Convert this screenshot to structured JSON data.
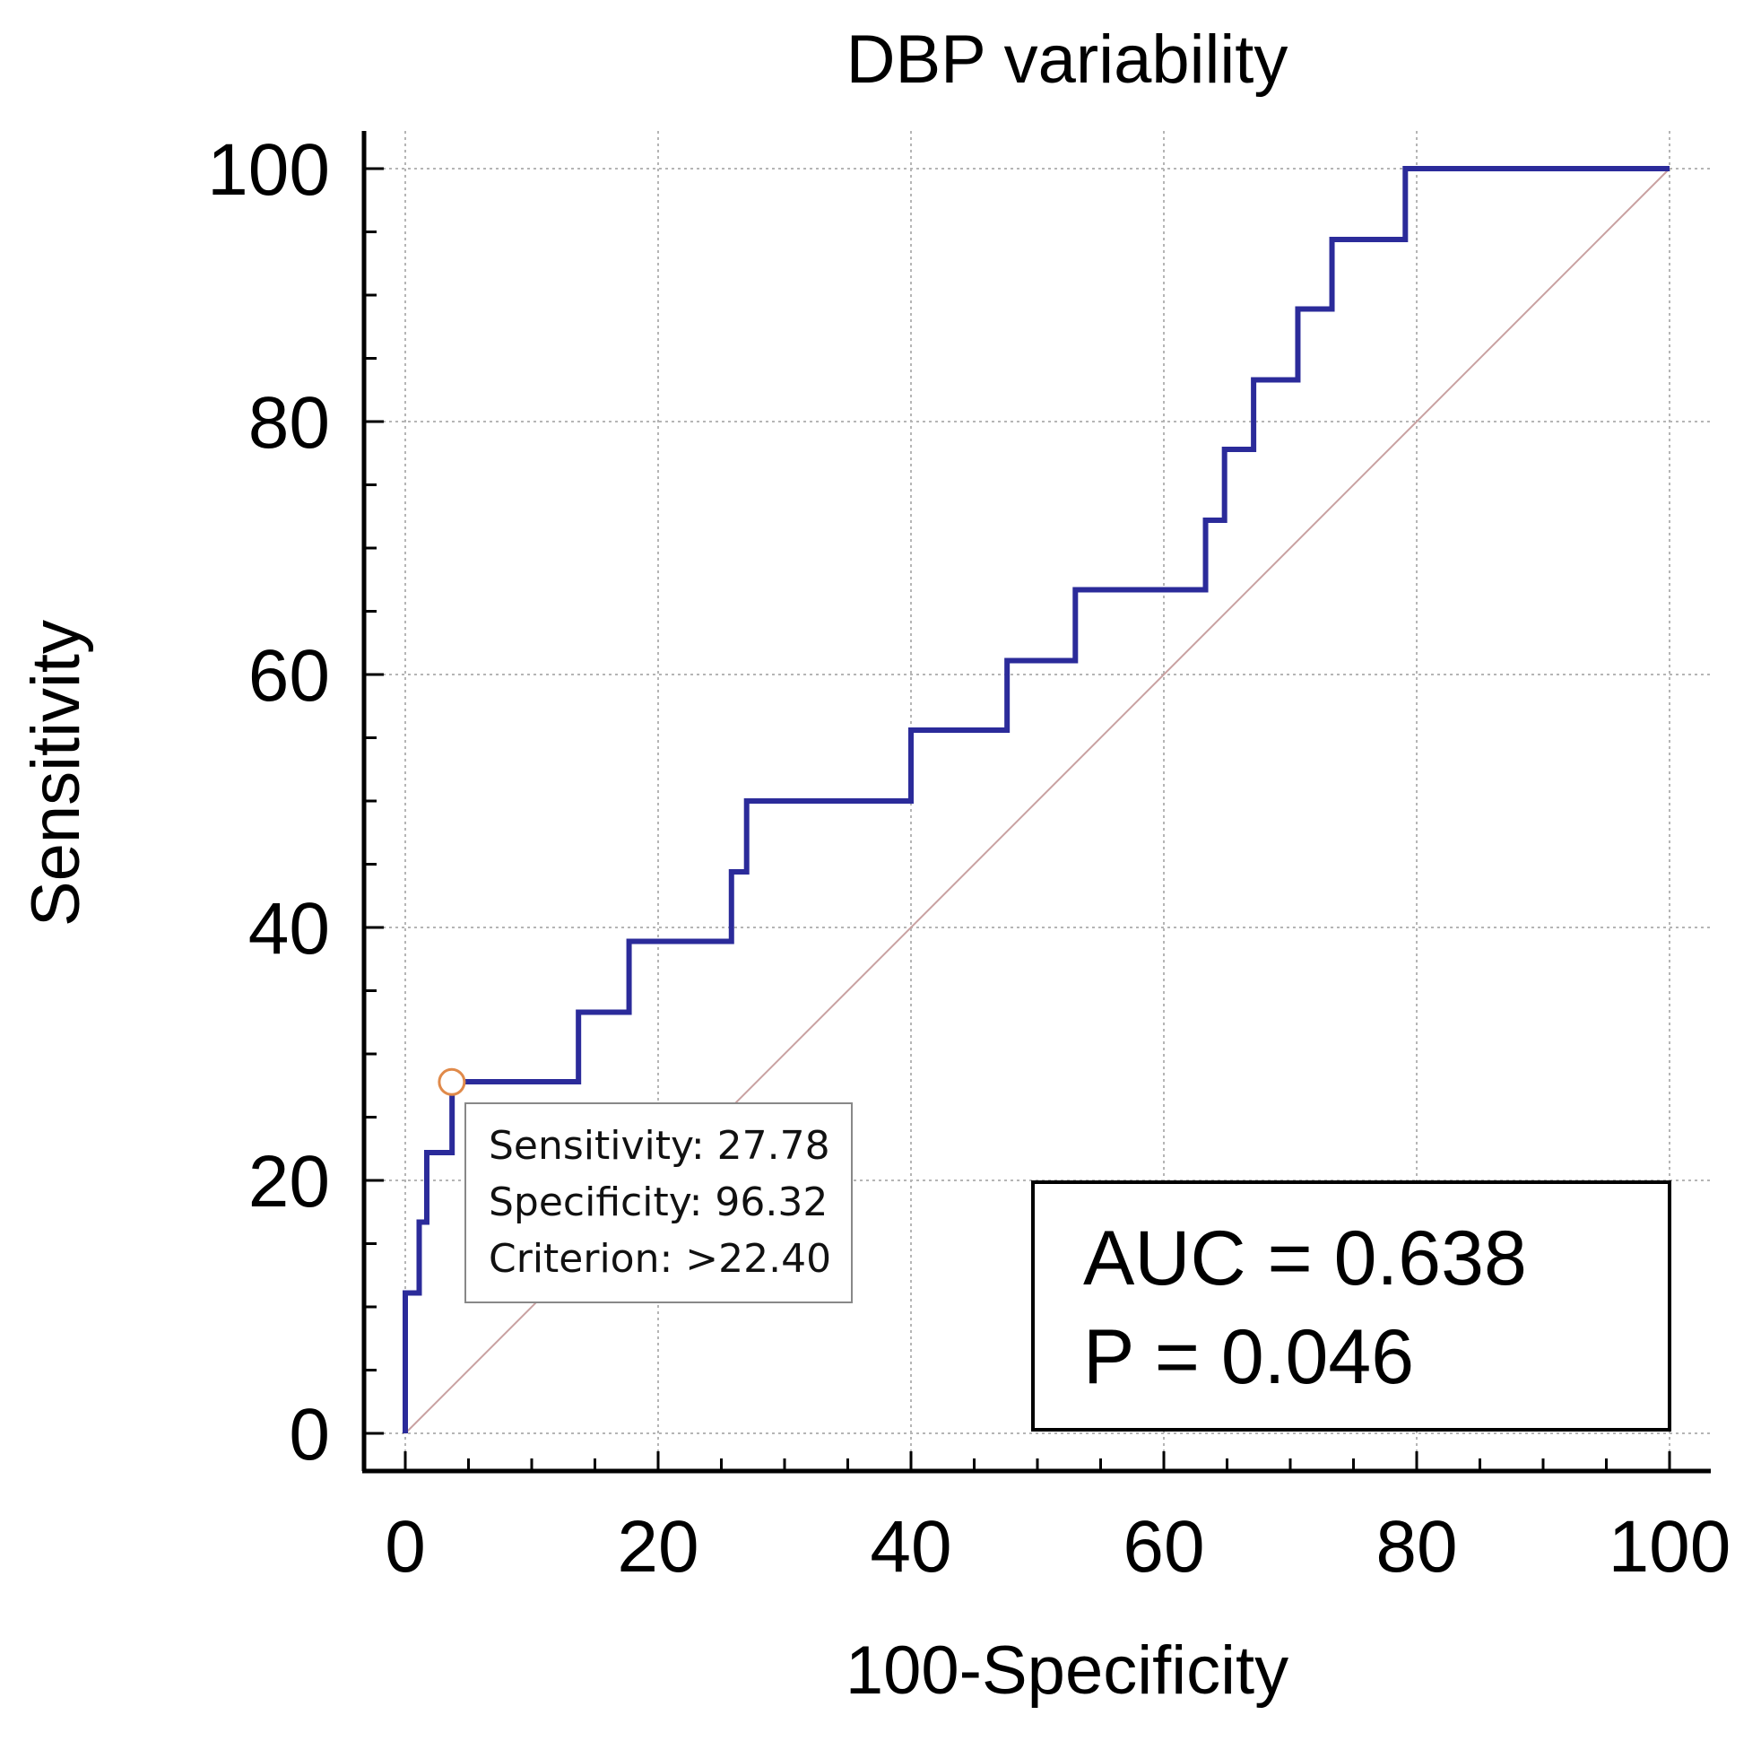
{
  "chart_data": {
    "type": "line",
    "title": "DBP variability",
    "xlabel": "100-Specificity",
    "ylabel": "Sensitivity",
    "xlim": [
      0,
      100
    ],
    "ylim": [
      0,
      100
    ],
    "grid": true,
    "x_ticks": [
      0,
      20,
      40,
      60,
      80,
      100
    ],
    "y_ticks": [
      0,
      20,
      40,
      60,
      80,
      100
    ],
    "series": [
      {
        "name": "ROC curve",
        "color": "#2b2b9a",
        "step_points": [
          [
            0,
            0
          ],
          [
            0,
            11.1
          ],
          [
            1.1,
            11.1
          ],
          [
            1.1,
            16.7
          ],
          [
            1.7,
            16.7
          ],
          [
            1.7,
            22.2
          ],
          [
            3.7,
            22.2
          ],
          [
            3.7,
            27.8
          ],
          [
            13.7,
            27.8
          ],
          [
            13.7,
            33.3
          ],
          [
            17.7,
            33.3
          ],
          [
            17.7,
            38.9
          ],
          [
            25.8,
            38.9
          ],
          [
            25.8,
            44.4
          ],
          [
            27.0,
            44.4
          ],
          [
            27.0,
            50.0
          ],
          [
            40.0,
            50.0
          ],
          [
            40.0,
            55.6
          ],
          [
            47.6,
            55.6
          ],
          [
            47.6,
            61.1
          ],
          [
            53.0,
            61.1
          ],
          [
            53.0,
            66.7
          ],
          [
            63.3,
            66.7
          ],
          [
            63.3,
            72.2
          ],
          [
            64.8,
            72.2
          ],
          [
            64.8,
            77.8
          ],
          [
            67.1,
            77.8
          ],
          [
            67.1,
            83.3
          ],
          [
            70.6,
            83.3
          ],
          [
            70.6,
            88.9
          ],
          [
            73.3,
            88.9
          ],
          [
            73.3,
            94.4
          ],
          [
            79.1,
            94.4
          ],
          [
            79.1,
            100
          ],
          [
            100,
            100
          ]
        ]
      },
      {
        "name": "Reference line",
        "color": "#c9a1a1",
        "points": [
          [
            0,
            0
          ],
          [
            100,
            100
          ]
        ]
      }
    ],
    "optimal_point": {
      "x": 3.68,
      "y": 27.78,
      "marker_color": "#e08a4a",
      "labels": [
        "Sensitivity: 27.78",
        "Specificity: 96.32",
        "Criterion: >22.40"
      ]
    },
    "annotation": {
      "lines": [
        "AUC = 0.638",
        "P = 0.046"
      ]
    }
  }
}
